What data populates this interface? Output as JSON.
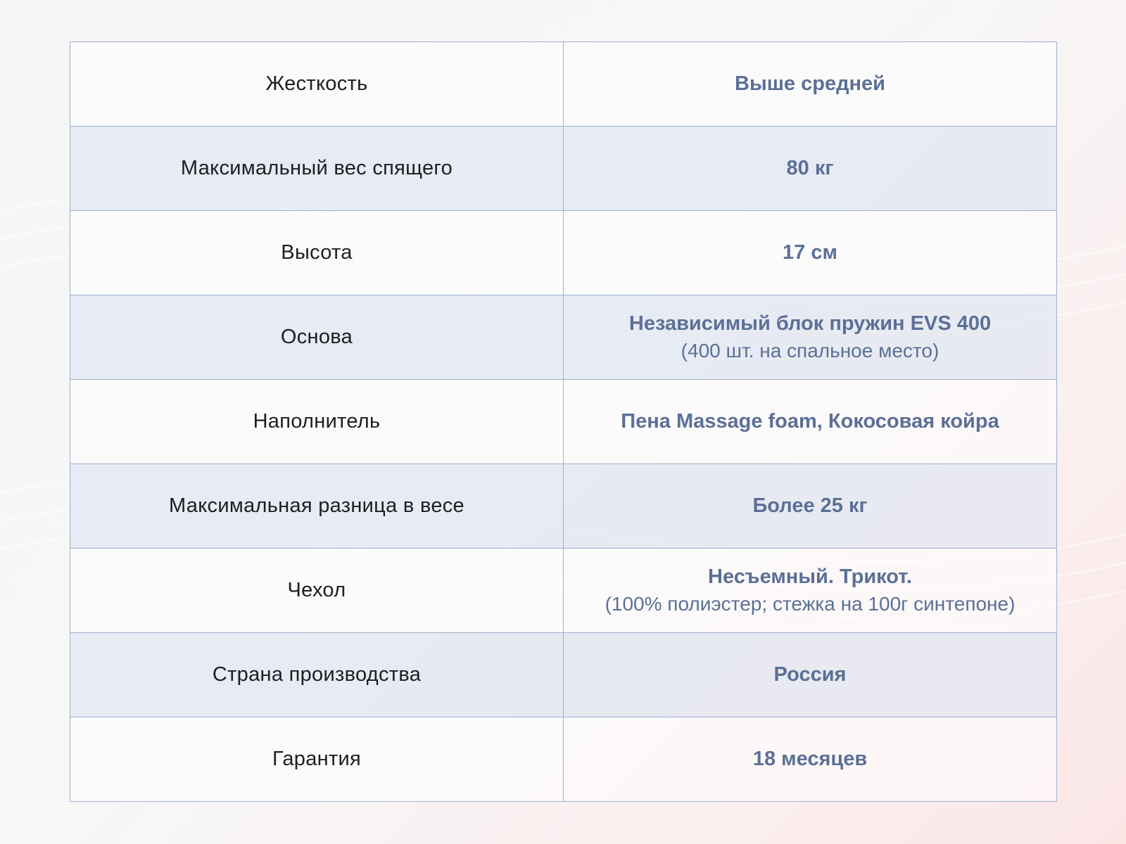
{
  "colors": {
    "value_text": "#5b7097",
    "label_text": "#1e1e22",
    "border": "#9fb0cf",
    "stripe": "#e1e7f1"
  },
  "rows": [
    {
      "label": "Жесткость",
      "value": "Выше средней",
      "note": ""
    },
    {
      "label": "Максимальный вес спящего",
      "value": "80 кг",
      "note": ""
    },
    {
      "label": "Высота",
      "value": "17 см",
      "note": ""
    },
    {
      "label": "Основа",
      "value": "Независимый блок пружин EVS 400",
      "note": "(400 шт. на спальное место)"
    },
    {
      "label": "Наполнитель",
      "value": "Пена Massage foam, Кокосовая койра",
      "note": ""
    },
    {
      "label": "Максимальная разница в весе",
      "value": "Более 25 кг",
      "note": ""
    },
    {
      "label": "Чехол",
      "value": "Несъемный. Трикот.",
      "note": "(100% полиэстер; стежка на 100г синтепоне)"
    },
    {
      "label": "Страна производства",
      "value": "Россия",
      "note": ""
    },
    {
      "label": "Гарантия",
      "value": "18 месяцев",
      "note": ""
    }
  ]
}
